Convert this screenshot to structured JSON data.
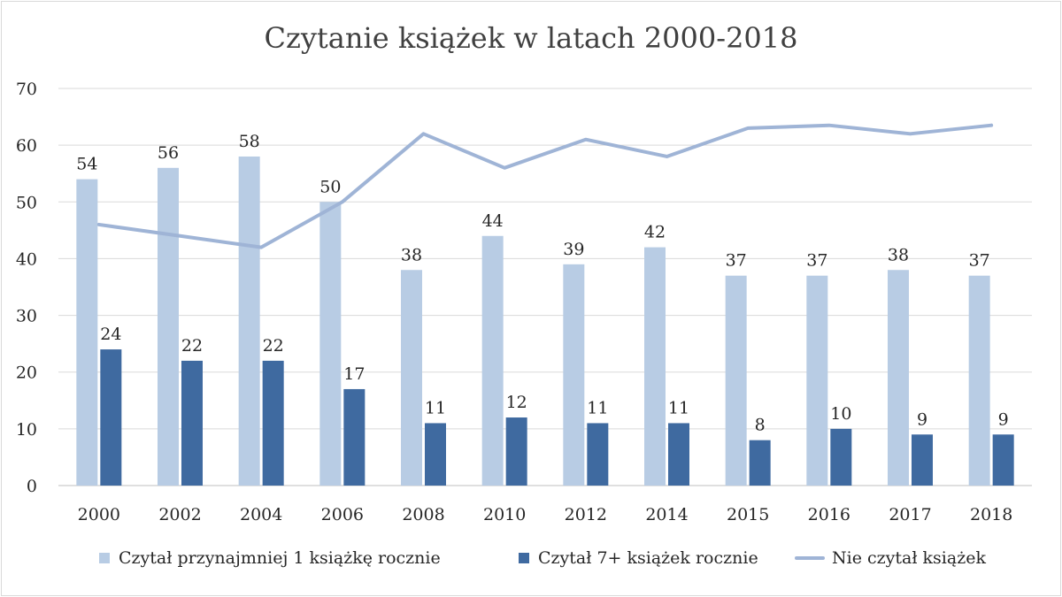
{
  "chart_data": {
    "type": "bar",
    "title": "Czytanie książek w latach 2000-2018",
    "xlabel": "",
    "ylabel": "",
    "ylim": [
      0,
      70
    ],
    "yticks": [
      0,
      10,
      20,
      30,
      40,
      50,
      60,
      70
    ],
    "grid": true,
    "legend_position": "bottom",
    "categories": [
      "2000",
      "2002",
      "2004",
      "2006",
      "2008",
      "2010",
      "2012",
      "2014",
      "2015",
      "2016",
      "2017",
      "2018"
    ],
    "series": [
      {
        "name": "Czytał przynajmniej 1 książkę rocznie",
        "type": "bar",
        "color": "#b8cce4",
        "values": [
          54,
          56,
          58,
          50,
          38,
          44,
          39,
          42,
          37,
          37,
          38,
          37
        ],
        "labels": [
          "54",
          "56",
          "58",
          "50",
          "38",
          "44",
          "39",
          "42",
          "37",
          "37",
          "38",
          "37"
        ]
      },
      {
        "name": "Czytał 7+ książek rocznie",
        "type": "bar",
        "color": "#3f6aa0",
        "values": [
          24,
          22,
          22,
          17,
          11,
          12,
          11,
          11,
          8,
          10,
          9,
          9
        ],
        "labels": [
          "24",
          "22",
          "22",
          "17",
          "11",
          "12",
          "11",
          "11",
          "8",
          "10",
          "9",
          "9"
        ]
      },
      {
        "name": "Nie czytał książek",
        "type": "line",
        "color": "#9fb4d6",
        "values": [
          46,
          44,
          42,
          50,
          62,
          56,
          61,
          58,
          63,
          63.5,
          62,
          63.5
        ]
      }
    ]
  }
}
